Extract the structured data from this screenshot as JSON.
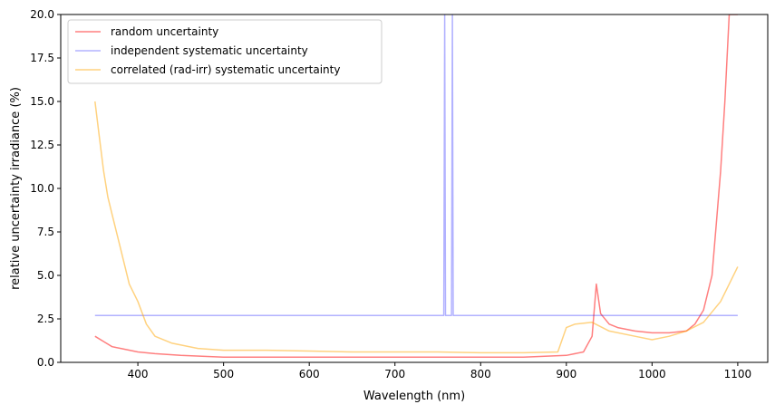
{
  "chart_data": {
    "type": "line",
    "title": "",
    "xlabel": "Wavelength (nm)",
    "ylabel": "relative uncertainty irradiance (%)",
    "xlim": [
      310,
      1135
    ],
    "ylim": [
      0,
      20
    ],
    "x_ticks": [
      400,
      500,
      600,
      700,
      800,
      900,
      1000,
      1100
    ],
    "y_ticks": [
      0.0,
      2.5,
      5.0,
      7.5,
      10.0,
      12.5,
      15.0,
      17.5,
      20.0
    ],
    "x_tick_labels": [
      "400",
      "500",
      "600",
      "700",
      "800",
      "900",
      "1000",
      "1100"
    ],
    "y_tick_labels": [
      "0.0",
      "2.5",
      "5.0",
      "7.5",
      "10.0",
      "12.5",
      "15.0",
      "17.5",
      "20.0"
    ],
    "grid": false,
    "legend_position": "upper-left",
    "series": [
      {
        "name": "random uncertainty",
        "color": "#ff0000",
        "opacity": 0.5,
        "x": [
          350,
          360,
          370,
          380,
          400,
          420,
          450,
          500,
          550,
          600,
          650,
          700,
          750,
          800,
          850,
          900,
          920,
          930,
          935,
          940,
          950,
          960,
          980,
          1000,
          1020,
          1040,
          1050,
          1060,
          1070,
          1075,
          1080,
          1085,
          1090,
          1095,
          1100
        ],
        "y": [
          1.5,
          1.2,
          0.9,
          0.8,
          0.6,
          0.5,
          0.4,
          0.3,
          0.3,
          0.3,
          0.3,
          0.3,
          0.3,
          0.3,
          0.3,
          0.4,
          0.6,
          1.5,
          4.5,
          2.8,
          2.2,
          2.0,
          1.8,
          1.7,
          1.7,
          1.8,
          2.2,
          3.0,
          5.0,
          8.0,
          11.0,
          15.0,
          20.0,
          20.0,
          20.0
        ]
      },
      {
        "name": "independent systematic uncertainty",
        "color": "#0000ff",
        "opacity": 0.3,
        "x": [
          350,
          400,
          450,
          500,
          550,
          600,
          650,
          700,
          740,
          757,
          758,
          759,
          766,
          767,
          768,
          780,
          800,
          850,
          900,
          950,
          1000,
          1050,
          1100
        ],
        "y": [
          2.7,
          2.7,
          2.7,
          2.7,
          2.7,
          2.7,
          2.7,
          2.7,
          2.7,
          2.7,
          20.0,
          2.7,
          2.7,
          20.0,
          2.7,
          2.7,
          2.7,
          2.7,
          2.7,
          2.7,
          2.7,
          2.7,
          2.7
        ]
      },
      {
        "name": "correlated (rad-irr) systematic uncertainty",
        "color": "#ffa500",
        "opacity": 0.5,
        "x": [
          350,
          355,
          360,
          365,
          370,
          380,
          390,
          400,
          410,
          420,
          440,
          470,
          500,
          550,
          600,
          650,
          700,
          750,
          800,
          850,
          890,
          900,
          910,
          930,
          950,
          980,
          1000,
          1020,
          1040,
          1060,
          1080,
          1090,
          1100
        ],
        "y": [
          15.0,
          13.0,
          11.0,
          9.5,
          8.5,
          6.5,
          4.5,
          3.5,
          2.2,
          1.5,
          1.1,
          0.8,
          0.7,
          0.7,
          0.65,
          0.6,
          0.6,
          0.6,
          0.55,
          0.55,
          0.6,
          2.0,
          2.2,
          2.3,
          1.8,
          1.5,
          1.3,
          1.5,
          1.8,
          2.3,
          3.5,
          4.5,
          5.5
        ]
      }
    ]
  }
}
